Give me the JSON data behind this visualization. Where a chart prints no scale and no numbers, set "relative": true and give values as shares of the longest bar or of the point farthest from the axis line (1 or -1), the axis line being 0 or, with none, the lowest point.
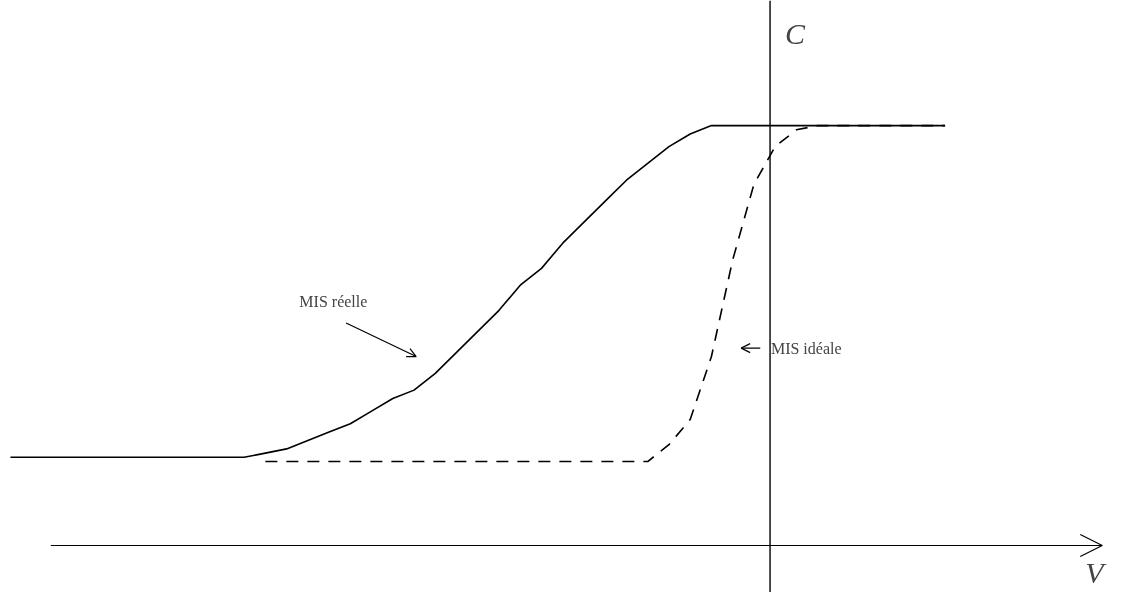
{
  "chart_data": {
    "type": "line",
    "relative": true,
    "xlabel": "V",
    "ylabel": "C",
    "categories": [
      null,
      null,
      null,
      null,
      null,
      null,
      null,
      null,
      null,
      null,
      null,
      null,
      null,
      null,
      null,
      null,
      null,
      null,
      null,
      null,
      null,
      null,
      null,
      null,
      null,
      null,
      null,
      null,
      null,
      null,
      null,
      null,
      null,
      null,
      null,
      null,
      null,
      null,
      null,
      null,
      null,
      null,
      null,
      null,
      null
    ],
    "series": [
      {
        "color": "#000000",
        "line_style": "solid",
        "values": [
          0.21,
          0.21,
          0.21,
          0.21,
          0.21,
          0.21,
          0.21,
          0.21,
          0.21,
          0.21,
          0.21,
          0.21,
          0.22,
          0.23,
          0.25,
          0.27,
          0.29,
          0.32,
          0.35,
          0.37,
          0.41,
          0.46,
          0.51,
          0.56,
          0.62,
          0.66,
          0.72,
          0.77,
          0.82,
          0.87,
          0.91,
          0.95,
          0.98,
          1.0,
          1,
          1,
          1,
          1,
          1,
          1,
          1,
          1,
          1,
          1,
          1
        ]
      },
      {
        "color": "#000000",
        "line_style": "dashed",
        "values": [
          null,
          null,
          null,
          null,
          null,
          null,
          null,
          null,
          null,
          null,
          null,
          null,
          0.2,
          0.2,
          0.2,
          0.2,
          0.2,
          0.2,
          0.2,
          0.2,
          0.2,
          0.2,
          0.2,
          0.2,
          0.2,
          0.2,
          0.2,
          0.2,
          0.2,
          0.2,
          0.2,
          0.24,
          0.3,
          0.45,
          0.68,
          0.86,
          0.95,
          0.99,
          1,
          1,
          1,
          1,
          1,
          1,
          1
        ]
      }
    ],
    "annotations": [
      "MIS réelle",
      "MIS idéale"
    ],
    "grid": false,
    "marker": "none"
  }
}
